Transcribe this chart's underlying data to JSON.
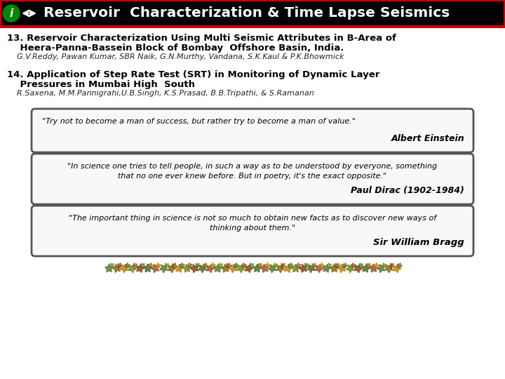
{
  "header_bg": "#000000",
  "header_text": "Reservoir  Characterization & Time Lapse Seismics",
  "header_text_color": "#ffffff",
  "header_border_color": "#cc0000",
  "body_bg": "#ffffff",
  "icon_color": "#008800",
  "item13_line1": "13. Reservoir Characterization Using Multi Seismic Attributes in B-Area of",
  "item13_line2": "    Heera-Panna-Bassein Block of Bombay  Offshore Basin, India.",
  "item13_authors": "    G.V.Reddy, Pawan Kumar, SBR Naik, G.N.Murthy, Vandana, S.K.Kaul & P.K.Bhowmick",
  "item14_line1": "14. Application of Step Rate Test (SRT) in Monitoring of Dynamic Layer",
  "item14_line2": "    Pressures in Mumbai High  South",
  "item14_authors": "    R.Saxena, M.M.Pannigrahi,U.B.Singh, K.S.Prasad, B.B.Tripathi, & S.Ramanan",
  "quote1_text": "\"Try not to become a man of success, but rather try to become a man of value.\"",
  "quote1_attr": "Albert Einstein",
  "quote2_line1": "\"In science one tries to tell people, in such a way as to be understood by everyone, something",
  "quote2_line2": "that no one ever knew before. But in poetry, it's the exact opposite.\"",
  "quote2_attr": "Paul Dirac (1902-1984)",
  "quote3_line1": "\"The important thing in science is not so much to obtain new facts as to discover new ways of",
  "quote3_line2": "thinking about them.\"",
  "quote3_attr": "Sir William Bragg",
  "quote_box_facecolor": "#f8f8f8",
  "quote_box_edgecolor": "#555555"
}
